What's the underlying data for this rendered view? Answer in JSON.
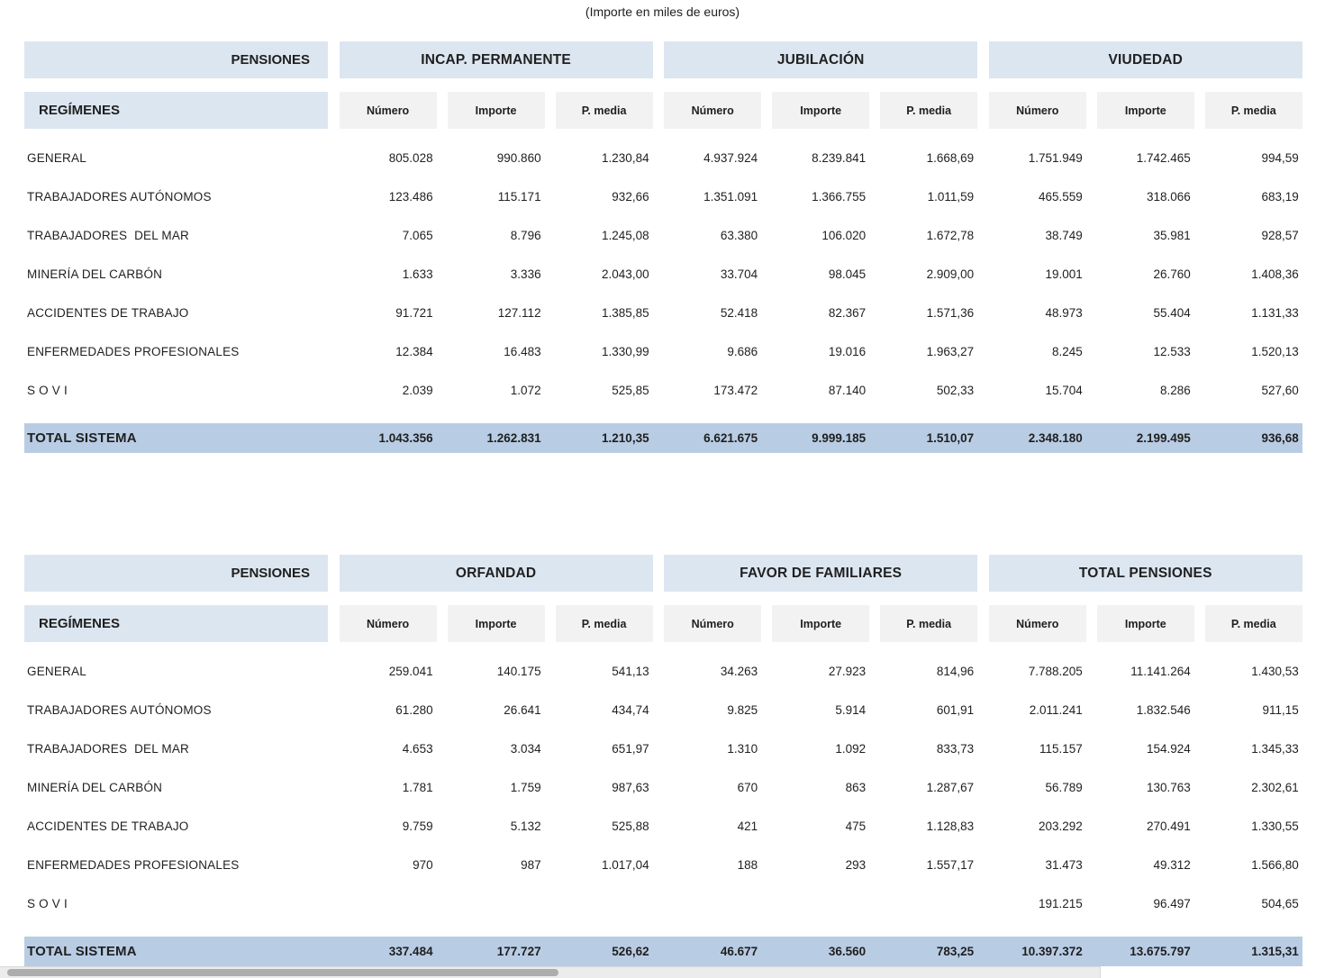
{
  "caption": "(Importe en miles de euros)",
  "labels": {
    "pensiones": "PENSIONES",
    "regimenes": "REGÍMENES",
    "total": "TOTAL SISTEMA",
    "subcols": [
      "Número",
      "Importe",
      "P. media"
    ]
  },
  "colors": {
    "header_blue": "#dce6f1",
    "total_blue": "#b8cce4",
    "subheader_gray": "#f2f2f2",
    "text": "#1f1f1f"
  },
  "tables": [
    {
      "groups": [
        "INCAP. PERMANENTE",
        "JUBILACIÓN",
        "VIUDEDAD"
      ],
      "rows": [
        {
          "label": "GENERAL",
          "values": [
            "805.028",
            "990.860",
            "1.230,84",
            "4.937.924",
            "8.239.841",
            "1.668,69",
            "1.751.949",
            "1.742.465",
            "994,59"
          ]
        },
        {
          "label": "TRABAJADORES AUTÓNOMOS",
          "values": [
            "123.486",
            "115.171",
            "932,66",
            "1.351.091",
            "1.366.755",
            "1.011,59",
            "465.559",
            "318.066",
            "683,19"
          ]
        },
        {
          "label": "TRABAJADORES  DEL MAR",
          "values": [
            "7.065",
            "8.796",
            "1.245,08",
            "63.380",
            "106.020",
            "1.672,78",
            "38.749",
            "35.981",
            "928,57"
          ]
        },
        {
          "label": "MINERÍA DEL CARBÓN",
          "values": [
            "1.633",
            "3.336",
            "2.043,00",
            "33.704",
            "98.045",
            "2.909,00",
            "19.001",
            "26.760",
            "1.408,36"
          ]
        },
        {
          "label": "ACCIDENTES DE TRABAJO",
          "values": [
            "91.721",
            "127.112",
            "1.385,85",
            "52.418",
            "82.367",
            "1.571,36",
            "48.973",
            "55.404",
            "1.131,33"
          ]
        },
        {
          "label": "ENFERMEDADES PROFESIONALES",
          "values": [
            "12.384",
            "16.483",
            "1.330,99",
            "9.686",
            "19.016",
            "1.963,27",
            "8.245",
            "12.533",
            "1.520,13"
          ]
        },
        {
          "label": "S O V I",
          "values": [
            "2.039",
            "1.072",
            "525,85",
            "173.472",
            "87.140",
            "502,33",
            "15.704",
            "8.286",
            "527,60"
          ]
        }
      ],
      "total": [
        "1.043.356",
        "1.262.831",
        "1.210,35",
        "6.621.675",
        "9.999.185",
        "1.510,07",
        "2.348.180",
        "2.199.495",
        "936,68"
      ]
    },
    {
      "groups": [
        "ORFANDAD",
        "FAVOR DE FAMILIARES",
        "TOTAL PENSIONES"
      ],
      "rows": [
        {
          "label": "GENERAL",
          "values": [
            "259.041",
            "140.175",
            "541,13",
            "34.263",
            "27.923",
            "814,96",
            "7.788.205",
            "11.141.264",
            "1.430,53"
          ]
        },
        {
          "label": "TRABAJADORES AUTÓNOMOS",
          "values": [
            "61.280",
            "26.641",
            "434,74",
            "9.825",
            "5.914",
            "601,91",
            "2.011.241",
            "1.832.546",
            "911,15"
          ]
        },
        {
          "label": "TRABAJADORES  DEL MAR",
          "values": [
            "4.653",
            "3.034",
            "651,97",
            "1.310",
            "1.092",
            "833,73",
            "115.157",
            "154.924",
            "1.345,33"
          ]
        },
        {
          "label": "MINERÍA DEL CARBÓN",
          "values": [
            "1.781",
            "1.759",
            "987,63",
            "670",
            "863",
            "1.287,67",
            "56.789",
            "130.763",
            "2.302,61"
          ]
        },
        {
          "label": "ACCIDENTES DE TRABAJO",
          "values": [
            "9.759",
            "5.132",
            "525,88",
            "421",
            "475",
            "1.128,83",
            "203.292",
            "270.491",
            "1.330,55"
          ]
        },
        {
          "label": "ENFERMEDADES PROFESIONALES",
          "values": [
            "970",
            "987",
            "1.017,04",
            "188",
            "293",
            "1.557,17",
            "31.473",
            "49.312",
            "1.566,80"
          ]
        },
        {
          "label": "S O V I",
          "values": [
            "",
            "",
            "",
            "",
            "",
            "",
            "191.215",
            "96.497",
            "504,65"
          ]
        }
      ],
      "total": [
        "337.484",
        "177.727",
        "526,62",
        "46.677",
        "36.560",
        "783,25",
        "10.397.372",
        "13.675.797",
        "1.315,31"
      ]
    }
  ],
  "scrollbar": {
    "orientation": "horizontal"
  }
}
